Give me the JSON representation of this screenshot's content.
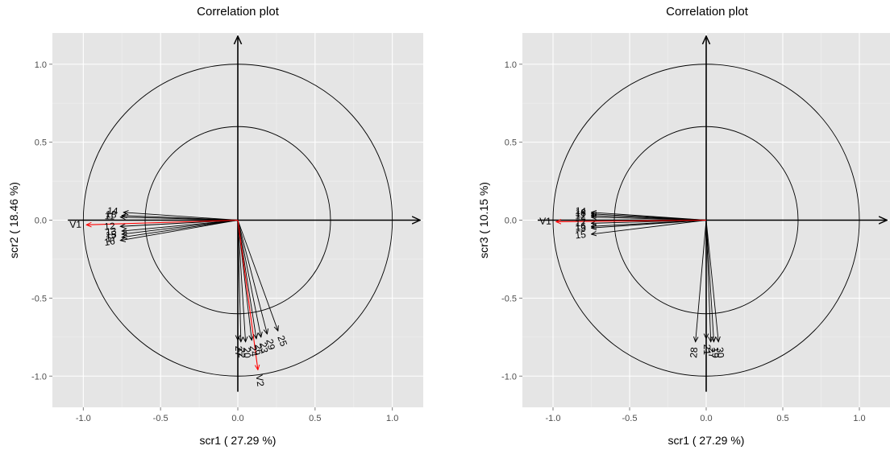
{
  "chart_data": [
    {
      "type": "scatter",
      "title": "Correlation plot",
      "xlabel": "scr1 ( 27.29 %)",
      "ylabel": "scr2 ( 18.46 %)",
      "xlim": [
        -1.2,
        1.2
      ],
      "ylim": [
        -1.2,
        1.2
      ],
      "xticks": [
        -1.0,
        -0.5,
        0.0,
        0.5,
        1.0
      ],
      "yticks": [
        -1.0,
        -0.5,
        0.0,
        0.5,
        1.0
      ],
      "xtick_labels": [
        "-1.0",
        "-0.5",
        "0.0",
        "0.5",
        "1.0"
      ],
      "ytick_labels": [
        "-1.0",
        "-0.5",
        "0.0",
        "0.5",
        "1.0"
      ],
      "circles": [
        0.6,
        1.0
      ],
      "grid": true,
      "colors": {
        "panel": "#e5e5e5",
        "grid_major": "#ffffff",
        "grid_minor": "#f0f0f0",
        "highlight": "#ff0000",
        "arrow": "#000000"
      },
      "series": [
        {
          "name": "V1",
          "label": "V1",
          "highlight": true,
          "x": -0.98,
          "y": -0.03
        },
        {
          "name": "V2",
          "label": "V2",
          "highlight": true,
          "x": 0.13,
          "y": -0.96
        },
        {
          "label": "14",
          "x": -0.74,
          "y": 0.05
        },
        {
          "label": "18",
          "x": -0.75,
          "y": 0.03
        },
        {
          "label": "11",
          "x": -0.76,
          "y": 0.02
        },
        {
          "label": "12",
          "x": -0.76,
          "y": -0.04
        },
        {
          "label": "13",
          "x": -0.75,
          "y": -0.07
        },
        {
          "label": "15",
          "x": -0.75,
          "y": -0.09
        },
        {
          "label": "17",
          "x": -0.75,
          "y": -0.11
        },
        {
          "label": "16",
          "x": -0.76,
          "y": -0.13
        },
        {
          "label": "25",
          "x": 0.26,
          "y": -0.71
        },
        {
          "label": "29",
          "x": 0.19,
          "y": -0.73
        },
        {
          "label": "23",
          "x": 0.15,
          "y": -0.75
        },
        {
          "label": "26",
          "x": 0.12,
          "y": -0.76
        },
        {
          "label": "24",
          "x": 0.09,
          "y": -0.77
        },
        {
          "label": "20",
          "x": 0.05,
          "y": -0.78
        },
        {
          "label": "22",
          "x": 0.02,
          "y": -0.78
        },
        {
          "label": "27",
          "x": 0.0,
          "y": -0.77
        }
      ]
    },
    {
      "type": "scatter",
      "title": "Correlation plot",
      "xlabel": "scr1 ( 27.29 %)",
      "ylabel": "scr3 ( 10.15 %)",
      "xlim": [
        -1.2,
        1.2
      ],
      "ylim": [
        -1.2,
        1.2
      ],
      "xticks": [
        -1.0,
        -0.5,
        0.0,
        0.5,
        1.0
      ],
      "yticks": [
        -1.0,
        -0.5,
        0.0,
        0.5,
        1.0
      ],
      "xtick_labels": [
        "-1.0",
        "-0.5",
        "0.0",
        "0.5",
        "1.0"
      ],
      "ytick_labels": [
        "-1.0",
        "-0.5",
        "0.0",
        "0.5",
        "1.0"
      ],
      "circles": [
        0.6,
        1.0
      ],
      "grid": true,
      "colors": {
        "panel": "#e5e5e5",
        "grid_major": "#ffffff",
        "grid_minor": "#f0f0f0",
        "highlight": "#ff0000",
        "arrow": "#000000"
      },
      "series": [
        {
          "name": "V1",
          "label": "V1",
          "highlight": true,
          "x": -0.98,
          "y": -0.01
        },
        {
          "label": "14",
          "x": -0.75,
          "y": 0.05
        },
        {
          "label": "18",
          "x": -0.75,
          "y": 0.04
        },
        {
          "label": "11",
          "x": -0.75,
          "y": 0.03
        },
        {
          "label": "12",
          "x": -0.75,
          "y": 0.02
        },
        {
          "label": "17",
          "x": -0.75,
          "y": -0.02
        },
        {
          "label": "16",
          "x": -0.75,
          "y": -0.04
        },
        {
          "label": "13",
          "x": -0.75,
          "y": -0.05
        },
        {
          "label": "15",
          "x": -0.75,
          "y": -0.09
        },
        {
          "label": "28",
          "x": -0.07,
          "y": -0.78
        },
        {
          "label": "21",
          "x": 0.0,
          "y": -0.76
        },
        {
          "label": "27",
          "x": 0.03,
          "y": -0.78
        },
        {
          "label": "19",
          "x": 0.05,
          "y": -0.78
        },
        {
          "label": "30",
          "x": 0.08,
          "y": -0.78
        }
      ]
    }
  ]
}
